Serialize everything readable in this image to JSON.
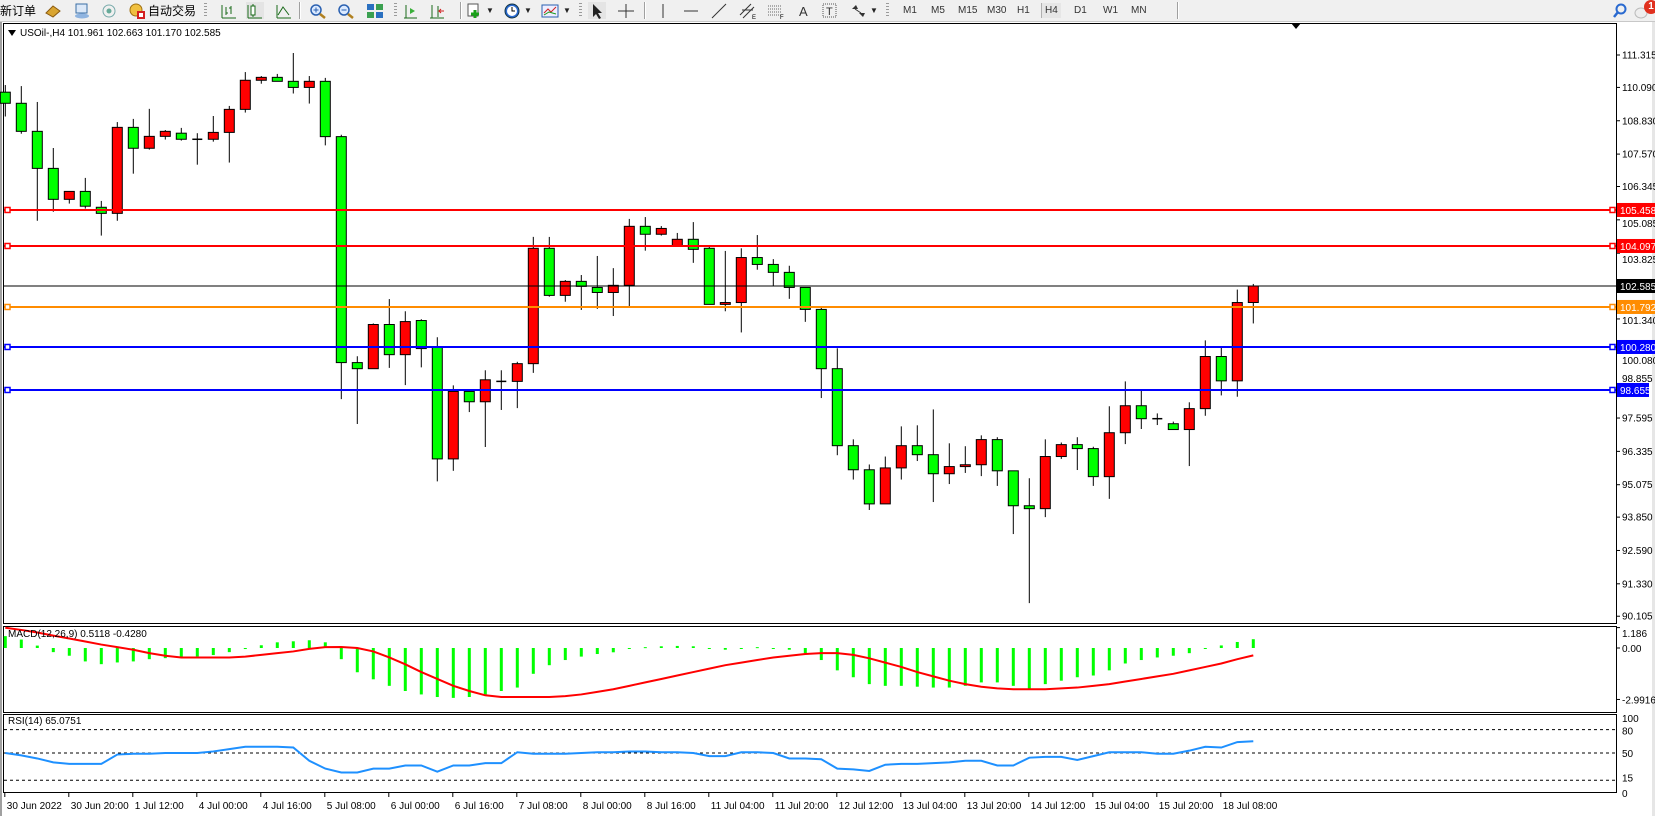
{
  "toolbar": {
    "new_order_label": "新订单",
    "autotrade_label": "自动交易",
    "timeframes": [
      "M1",
      "M5",
      "M15",
      "M30",
      "H1",
      "H4",
      "D1",
      "W1",
      "MN"
    ],
    "selected_timeframe": "H4",
    "notification_count": "1"
  },
  "chart": {
    "symbol_header": "USOil-,H4  101.961 102.663 101.170 102.585",
    "colors": {
      "bull": "#ff0000",
      "bear": "#00ff00",
      "outline": "#000000",
      "bid_line": "#000000"
    },
    "price_ticks": [
      "111.315",
      "110.090",
      "108.830",
      "107.570",
      "106.345",
      "105.085",
      "103.825",
      "101.340",
      "100.080",
      "98.855",
      "97.595",
      "96.335",
      "95.075",
      "93.850",
      "92.590",
      "91.330",
      "90.105"
    ],
    "bid": {
      "price": "102.585",
      "color": "#000000"
    },
    "levels": [
      {
        "price": "105.458",
        "color": "#ff0000"
      },
      {
        "price": "104.097",
        "color": "#ff0000"
      },
      {
        "price": "101.792",
        "color": "#ff8c00"
      },
      {
        "price": "100.280",
        "color": "#0000ff"
      },
      {
        "price": "98.655",
        "color": "#0000ff"
      }
    ],
    "time_labels": [
      "30 Jun 2022",
      "30 Jun 20:00",
      "1 Jul 12:00",
      "4 Jul 00:00",
      "4 Jul 16:00",
      "5 Jul 08:00",
      "6 Jul 00:00",
      "6 Jul 16:00",
      "7 Jul 08:00",
      "8 Jul 00:00",
      "8 Jul 16:00",
      "11 Jul 04:00",
      "11 Jul 20:00",
      "12 Jul 12:00",
      "13 Jul 04:00",
      "13 Jul 20:00",
      "14 Jul 12:00",
      "15 Jul 04:00",
      "15 Jul 20:00",
      "18 Jul 08:00"
    ],
    "candles_ohlc": [
      [
        109.91,
        110.18,
        108.99,
        109.49
      ],
      [
        109.49,
        110.14,
        108.34,
        108.43
      ],
      [
        108.43,
        109.54,
        105.05,
        107.03
      ],
      [
        107.03,
        107.8,
        105.39,
        105.86
      ],
      [
        105.86,
        106.16,
        105.7,
        106.16
      ],
      [
        106.16,
        106.67,
        105.51,
        105.6
      ],
      [
        105.56,
        105.8,
        104.49,
        105.33
      ],
      [
        105.33,
        108.78,
        105.05,
        108.58
      ],
      [
        108.58,
        108.9,
        106.83,
        107.79
      ],
      [
        107.79,
        109.28,
        107.74,
        108.24
      ],
      [
        108.24,
        108.48,
        108.12,
        108.43
      ],
      [
        108.36,
        108.56,
        108.08,
        108.13
      ],
      [
        108.13,
        108.36,
        107.17,
        108.13
      ],
      [
        108.13,
        109.01,
        108.04,
        108.39
      ],
      [
        108.39,
        109.39,
        107.25,
        109.26
      ],
      [
        109.26,
        110.67,
        109.14,
        110.36
      ],
      [
        110.36,
        110.52,
        110.23,
        110.47
      ],
      [
        110.47,
        110.6,
        110.32,
        110.32
      ],
      [
        110.32,
        111.39,
        109.86,
        110.09
      ],
      [
        110.09,
        110.52,
        109.48,
        110.32
      ],
      [
        110.32,
        110.45,
        107.9,
        108.23
      ],
      [
        108.23,
        108.3,
        98.31,
        99.69
      ],
      [
        99.69,
        99.93,
        97.37,
        99.46
      ],
      [
        99.46,
        101.17,
        99.46,
        101.13
      ],
      [
        101.13,
        102.09,
        99.49,
        99.99
      ],
      [
        99.99,
        101.63,
        98.84,
        101.24
      ],
      [
        101.28,
        101.33,
        99.51,
        100.22
      ],
      [
        100.27,
        100.65,
        95.2,
        96.05
      ],
      [
        96.05,
        98.83,
        95.6,
        98.6
      ],
      [
        98.6,
        98.6,
        97.82,
        98.21
      ],
      [
        98.21,
        99.4,
        96.5,
        99.04
      ],
      [
        98.98,
        99.4,
        97.9,
        98.98
      ],
      [
        98.98,
        99.72,
        97.97,
        99.65
      ],
      [
        99.65,
        104.44,
        99.3,
        104.01
      ],
      [
        104.01,
        104.44,
        102.18,
        102.23
      ],
      [
        102.23,
        102.81,
        101.99,
        102.76
      ],
      [
        102.76,
        103.0,
        101.68,
        102.57
      ],
      [
        102.53,
        103.72,
        101.72,
        102.34
      ],
      [
        102.34,
        103.26,
        101.45,
        102.61
      ],
      [
        102.61,
        105.12,
        101.82,
        104.84
      ],
      [
        104.84,
        105.19,
        103.92,
        104.54
      ],
      [
        104.54,
        104.85,
        104.49,
        104.76
      ],
      [
        104.11,
        104.59,
        104.11,
        104.35
      ],
      [
        104.35,
        105.0,
        103.46,
        103.97
      ],
      [
        104.01,
        104.07,
        101.89,
        101.89
      ],
      [
        101.89,
        103.91,
        101.63,
        101.96
      ],
      [
        101.96,
        104.01,
        100.83,
        103.66
      ],
      [
        103.66,
        104.51,
        103.2,
        103.4
      ],
      [
        103.4,
        103.6,
        102.57,
        103.1
      ],
      [
        103.1,
        103.35,
        102.1,
        102.53
      ],
      [
        102.53,
        102.53,
        101.23,
        101.7
      ],
      [
        101.7,
        101.77,
        98.35,
        99.46
      ],
      [
        99.46,
        100.23,
        96.19,
        96.55
      ],
      [
        96.55,
        96.79,
        95.27,
        95.64
      ],
      [
        95.64,
        95.84,
        94.12,
        94.35
      ],
      [
        94.35,
        96.14,
        94.35,
        95.71
      ],
      [
        95.71,
        97.28,
        95.27,
        96.55
      ],
      [
        96.55,
        97.32,
        95.97,
        96.21
      ],
      [
        96.21,
        97.92,
        94.42,
        95.49
      ],
      [
        95.49,
        96.64,
        95.1,
        95.76
      ],
      [
        95.76,
        96.53,
        95.52,
        95.83
      ],
      [
        95.83,
        96.94,
        95.4,
        96.78
      ],
      [
        96.78,
        96.87,
        95.03,
        95.6
      ],
      [
        95.6,
        95.6,
        93.21,
        94.28
      ],
      [
        94.28,
        95.32,
        90.6,
        94.17
      ],
      [
        94.17,
        96.79,
        93.85,
        96.14
      ],
      [
        96.14,
        96.67,
        96.05,
        96.59
      ],
      [
        96.59,
        96.87,
        95.63,
        96.44
      ],
      [
        96.44,
        96.51,
        95.03,
        95.38
      ],
      [
        95.38,
        98.04,
        94.54,
        97.04
      ],
      [
        97.04,
        98.98,
        96.61,
        98.06
      ],
      [
        98.06,
        98.62,
        97.18,
        97.57
      ],
      [
        97.57,
        97.77,
        97.33,
        97.57
      ],
      [
        97.38,
        97.46,
        97.16,
        97.16
      ],
      [
        97.16,
        98.19,
        95.78,
        97.95
      ],
      [
        97.95,
        100.53,
        97.68,
        99.92
      ],
      [
        99.92,
        100.25,
        98.45,
        99.0
      ],
      [
        99.0,
        102.45,
        98.4,
        101.96
      ],
      [
        101.961,
        102.663,
        101.17,
        102.585
      ]
    ]
  },
  "macd": {
    "label": "MACD(12,26,9) 0.5118 -0.4280",
    "ticks": [
      {
        "text": "1.186",
        "value": 1.186
      },
      {
        "text": "0.00",
        "value": 0
      },
      {
        "text": "-2.9916",
        "value": -2.9916
      }
    ],
    "histogram_color": "#00ff00",
    "signal_color": "#ff0000",
    "histogram": [
      0.69,
      0.49,
      0.14,
      -0.24,
      -0.45,
      -0.78,
      -0.94,
      -0.84,
      -0.78,
      -0.65,
      -0.59,
      -0.55,
      -0.49,
      -0.41,
      -0.24,
      -0.06,
      0.16,
      0.33,
      0.39,
      0.45,
      0.33,
      -0.65,
      -1.41,
      -1.82,
      -2.2,
      -2.5,
      -2.7,
      -2.85,
      -2.9,
      -2.85,
      -2.7,
      -2.5,
      -2.3,
      -1.5,
      -1.0,
      -0.7,
      -0.5,
      -0.35,
      -0.25,
      0.0,
      0.05,
      0.1,
      0.12,
      0.1,
      -0.05,
      -0.1,
      0.0,
      0.05,
      0.0,
      -0.1,
      -0.3,
      -0.7,
      -1.3,
      -1.7,
      -2.1,
      -2.2,
      -2.2,
      -2.25,
      -2.3,
      -2.3,
      -2.2,
      -2.0,
      -2.0,
      -2.2,
      -2.4,
      -2.1,
      -1.9,
      -1.7,
      -1.6,
      -1.3,
      -0.9,
      -0.7,
      -0.55,
      -0.45,
      -0.3,
      0.0,
      0.15,
      0.35,
      0.5118
    ],
    "signal": [
      1.18,
      1.05,
      0.9,
      0.72,
      0.55,
      0.38,
      0.2,
      0.05,
      -0.1,
      -0.3,
      -0.45,
      -0.55,
      -0.55,
      -0.55,
      -0.55,
      -0.5,
      -0.4,
      -0.3,
      -0.2,
      -0.05,
      0.05,
      0.06,
      0.0,
      -0.2,
      -0.55,
      -0.95,
      -1.4,
      -1.8,
      -2.2,
      -2.5,
      -2.75,
      -2.85,
      -2.85,
      -2.85,
      -2.85,
      -2.8,
      -2.7,
      -2.55,
      -2.4,
      -2.2,
      -2.0,
      -1.8,
      -1.6,
      -1.4,
      -1.2,
      -1.0,
      -0.85,
      -0.7,
      -0.55,
      -0.45,
      -0.35,
      -0.3,
      -0.3,
      -0.4,
      -0.6,
      -0.85,
      -1.1,
      -1.4,
      -1.65,
      -1.9,
      -2.1,
      -2.25,
      -2.35,
      -2.4,
      -2.4,
      -2.4,
      -2.35,
      -2.3,
      -2.2,
      -2.1,
      -1.95,
      -1.8,
      -1.65,
      -1.5,
      -1.3,
      -1.1,
      -0.9,
      -0.65,
      -0.428
    ]
  },
  "rsi": {
    "label": "RSI(14) 65.0751",
    "ticks": [
      "100",
      "80",
      "50",
      "15",
      "0"
    ],
    "levels": [
      80,
      50,
      15
    ],
    "line_color": "#1e90ff",
    "values": [
      50,
      47,
      43,
      38,
      36,
      36,
      36,
      48,
      49,
      49,
      50,
      50,
      50,
      52,
      55,
      58,
      58,
      58,
      57,
      40,
      30,
      25,
      25,
      30,
      30,
      34,
      34,
      26,
      34,
      34,
      37,
      37,
      51,
      49,
      49,
      49,
      50,
      51,
      51,
      52,
      52,
      51,
      51,
      50,
      46,
      46,
      51,
      51,
      50,
      43,
      43,
      42,
      30,
      29,
      27,
      35,
      36,
      36,
      37,
      38,
      40,
      40,
      34,
      34,
      44,
      45,
      45,
      41,
      46,
      51,
      51,
      51,
      49,
      49,
      53,
      58,
      57,
      64,
      65.0751
    ]
  }
}
